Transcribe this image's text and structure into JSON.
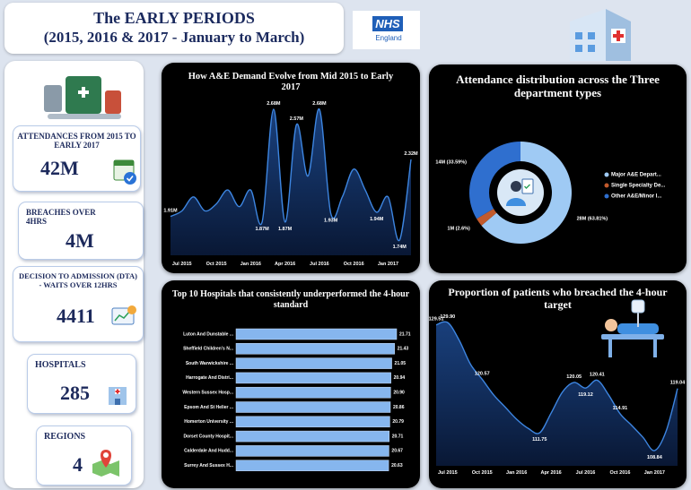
{
  "header": {
    "title": "The EARLY PERIODS",
    "subtitle": "(2015, 2016 & 2017 - January to March)",
    "logo": "NHS",
    "logo_sub": "England"
  },
  "kpis": [
    {
      "label": "ATTENDANCES FROM 2015 TO EARLY 2017",
      "value": "42M"
    },
    {
      "label": "BREACHES OVER 4HRS",
      "value": "4M"
    },
    {
      "label": "DECISION TO ADMISSION (DTA) - WAITS OVER 12HRS",
      "value": "4411"
    },
    {
      "label": "HOSPITALS",
      "value": "285"
    },
    {
      "label": "REGIONS",
      "value": "4"
    }
  ],
  "chart_data": [
    {
      "type": "line",
      "title": "How A&E Demand Evolve from Mid 2015 to Early 2017",
      "categories": [
        null,
        "Jul 2015",
        null,
        null,
        "Oct 2015",
        null,
        null,
        "Jan 2016",
        null,
        null,
        "Apr 2016",
        null,
        null,
        "Jul 2016",
        null,
        null,
        "Oct 2016",
        null,
        null,
        "Jan 2017",
        null,
        null
      ],
      "values": [
        1.91,
        1.95,
        2.05,
        1.95,
        2.0,
        2.1,
        1.98,
        2.1,
        1.87,
        2.68,
        1.87,
        2.57,
        2.2,
        2.68,
        1.93,
        2.05,
        2.25,
        2.1,
        1.94,
        2.05,
        1.74,
        2.32
      ],
      "value_labels": [
        "1.91M",
        null,
        null,
        null,
        null,
        null,
        null,
        null,
        "1.87M",
        "2.68M",
        "1.87M",
        "2.57M",
        null,
        "2.68M",
        "1.93M",
        null,
        null,
        null,
        "1.94M",
        null,
        "1.74M",
        "2.32M"
      ],
      "color": "#3d85e0"
    },
    {
      "type": "donut",
      "title": "Attendance distribution across the Three department types",
      "categories": [
        "Major A&E Depart...",
        "Single Specialty De...",
        "Other A&E/Minor I..."
      ],
      "values": [
        63.81,
        2.6,
        33.59
      ],
      "value_labels": [
        "28M (63.81%)",
        "1M (2.6%)",
        "14M (33.59%)"
      ],
      "colors": [
        "#9fcaf4",
        "#c25a2c",
        "#2f6fcf"
      ]
    },
    {
      "type": "hbar",
      "title": "Top 10 Hospitals that consistently underperformed the 4-hour standard",
      "categories": [
        "Luton And Dunstable ...",
        "Sheffield Children's N...",
        "South Warwickshire ...",
        "Harrogate And Distri...",
        "Western Sussex Hosp...",
        "Epsom And St Helier ...",
        "Homerton University ...",
        "Dorset County Hospit...",
        "Calderdale And Hudd...",
        "Surrey And Sussex H..."
      ],
      "values": [
        21.71,
        21.43,
        21.05,
        20.94,
        20.9,
        20.86,
        20.79,
        20.71,
        20.67,
        20.63
      ],
      "value_labels": [
        "21.71",
        "21.43",
        "21.05",
        "20.94",
        "20.90",
        "20.86",
        "20.79",
        "20.71",
        "20.67",
        "20.63"
      ],
      "color": "#86b6ee"
    },
    {
      "type": "line",
      "title": "Proportion of patients who breached the 4-hour target",
      "categories": [
        null,
        "Jul 2015",
        null,
        null,
        "Oct 2015",
        null,
        null,
        "Jan 2016",
        null,
        null,
        "Apr 2016",
        null,
        null,
        "Jul 2016",
        null,
        null,
        "Oct 2016",
        null,
        null,
        "Jan 2017",
        null,
        null
      ],
      "values": [
        129.51,
        129.9,
        127,
        123,
        120.57,
        118,
        116,
        114,
        112.5,
        111.75,
        115,
        118.5,
        120.05,
        119.12,
        120.41,
        118,
        114.91,
        113,
        111,
        108.84,
        112,
        119.04
      ],
      "value_labels": [
        "129.51",
        "129.90",
        null,
        null,
        "120.57",
        null,
        null,
        null,
        null,
        "111.75",
        null,
        null,
        "120.05",
        "119.12",
        "120.41",
        null,
        "114.91",
        null,
        null,
        "108.84",
        null,
        "119.04"
      ],
      "color": "#3d85e0"
    }
  ]
}
